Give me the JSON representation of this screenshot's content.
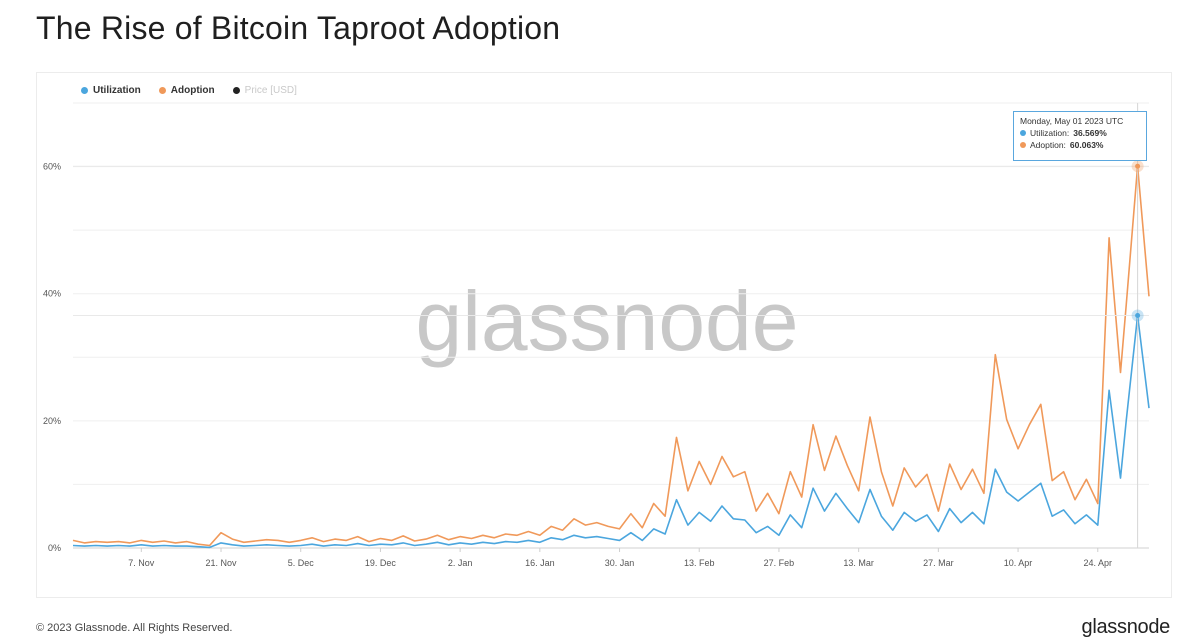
{
  "title": "The Rise of Bitcoin Taproot Adoption",
  "legend": [
    {
      "label": "Utilization",
      "color": "#4ba6de"
    },
    {
      "label": "Adoption",
      "color": "#f0995a"
    },
    {
      "label": "Price [USD]",
      "color": "#222222"
    }
  ],
  "watermark": "glassnode",
  "tooltip": {
    "date": "Monday, May 01 2023 UTC",
    "utilization_label": "Utilization:",
    "utilization_value": "36.569%",
    "adoption_label": "Adoption:",
    "adoption_value": "60.063%"
  },
  "footer": "© 2023 Glassnode. All Rights Reserved.",
  "logo": "glassnode",
  "chart_data": {
    "type": "line",
    "title": "The Rise of Bitcoin Taproot Adoption",
    "xlabel": "",
    "ylabel": "",
    "x_range": [
      "2022-10-26",
      "2023-05-03"
    ],
    "x_ticks": [
      "7. Nov",
      "21. Nov",
      "5. Dec",
      "19. Dec",
      "2. Jan",
      "16. Jan",
      "30. Jan",
      "13. Feb",
      "27. Feb",
      "13. Mar",
      "27. Mar",
      "10. Apr",
      "24. Apr"
    ],
    "y_ticks": [
      "0%",
      "20%",
      "40%",
      "60%"
    ],
    "ylim": [
      0,
      70
    ],
    "grid": true,
    "legend_position": "top-left",
    "series": [
      {
        "name": "Adoption",
        "color": "#f0995a",
        "points": [
          [
            "2022-10-26",
            1.2
          ],
          [
            "2022-10-28",
            0.8
          ],
          [
            "2022-10-30",
            1.0
          ],
          [
            "2022-11-01",
            0.9
          ],
          [
            "2022-11-03",
            1.0
          ],
          [
            "2022-11-05",
            0.8
          ],
          [
            "2022-11-07",
            1.2
          ],
          [
            "2022-11-09",
            0.9
          ],
          [
            "2022-11-11",
            1.1
          ],
          [
            "2022-11-13",
            0.8
          ],
          [
            "2022-11-15",
            1.0
          ],
          [
            "2022-11-17",
            0.6
          ],
          [
            "2022-11-19",
            0.4
          ],
          [
            "2022-11-21",
            2.4
          ],
          [
            "2022-11-23",
            1.4
          ],
          [
            "2022-11-25",
            0.9
          ],
          [
            "2022-11-27",
            1.1
          ],
          [
            "2022-11-29",
            1.3
          ],
          [
            "2022-12-01",
            1.2
          ],
          [
            "2022-12-03",
            0.9
          ],
          [
            "2022-12-05",
            1.2
          ],
          [
            "2022-12-07",
            1.6
          ],
          [
            "2022-12-09",
            1.0
          ],
          [
            "2022-12-11",
            1.4
          ],
          [
            "2022-12-13",
            1.2
          ],
          [
            "2022-12-15",
            1.8
          ],
          [
            "2022-12-17",
            1.0
          ],
          [
            "2022-12-19",
            1.5
          ],
          [
            "2022-12-21",
            1.2
          ],
          [
            "2022-12-23",
            1.9
          ],
          [
            "2022-12-25",
            1.1
          ],
          [
            "2022-12-27",
            1.4
          ],
          [
            "2022-12-29",
            2.0
          ],
          [
            "2022-12-31",
            1.3
          ],
          [
            "2023-01-02",
            1.8
          ],
          [
            "2023-01-04",
            1.5
          ],
          [
            "2023-01-06",
            2.0
          ],
          [
            "2023-01-08",
            1.6
          ],
          [
            "2023-01-10",
            2.2
          ],
          [
            "2023-01-12",
            2.0
          ],
          [
            "2023-01-14",
            2.6
          ],
          [
            "2023-01-16",
            2.0
          ],
          [
            "2023-01-18",
            3.4
          ],
          [
            "2023-01-20",
            2.8
          ],
          [
            "2023-01-22",
            4.6
          ],
          [
            "2023-01-24",
            3.6
          ],
          [
            "2023-01-26",
            4.0
          ],
          [
            "2023-01-28",
            3.4
          ],
          [
            "2023-01-30",
            3.0
          ],
          [
            "2023-02-01",
            5.4
          ],
          [
            "2023-02-03",
            3.2
          ],
          [
            "2023-02-05",
            7.0
          ],
          [
            "2023-02-07",
            5.0
          ],
          [
            "2023-02-09",
            17.4
          ],
          [
            "2023-02-11",
            9.0
          ],
          [
            "2023-02-13",
            13.6
          ],
          [
            "2023-02-15",
            10.0
          ],
          [
            "2023-02-17",
            14.4
          ],
          [
            "2023-02-19",
            11.2
          ],
          [
            "2023-02-21",
            12.0
          ],
          [
            "2023-02-23",
            5.8
          ],
          [
            "2023-02-25",
            8.6
          ],
          [
            "2023-02-27",
            5.4
          ],
          [
            "2023-03-01",
            12.0
          ],
          [
            "2023-03-03",
            8.0
          ],
          [
            "2023-03-05",
            19.4
          ],
          [
            "2023-03-07",
            12.2
          ],
          [
            "2023-03-09",
            17.6
          ],
          [
            "2023-03-11",
            13.0
          ],
          [
            "2023-03-13",
            9.0
          ],
          [
            "2023-03-15",
            20.6
          ],
          [
            "2023-03-17",
            12.0
          ],
          [
            "2023-03-19",
            6.6
          ],
          [
            "2023-03-21",
            12.6
          ],
          [
            "2023-03-23",
            9.6
          ],
          [
            "2023-03-25",
            11.6
          ],
          [
            "2023-03-27",
            5.8
          ],
          [
            "2023-03-29",
            13.2
          ],
          [
            "2023-03-31",
            9.2
          ],
          [
            "2023-04-02",
            12.4
          ],
          [
            "2023-04-04",
            8.6
          ],
          [
            "2023-04-06",
            30.4
          ],
          [
            "2023-04-08",
            20.2
          ],
          [
            "2023-04-10",
            15.6
          ],
          [
            "2023-04-12",
            19.4
          ],
          [
            "2023-04-14",
            22.6
          ],
          [
            "2023-04-16",
            10.6
          ],
          [
            "2023-04-18",
            12.0
          ],
          [
            "2023-04-20",
            7.6
          ],
          [
            "2023-04-22",
            10.8
          ],
          [
            "2023-04-24",
            7.0
          ],
          [
            "2023-04-26",
            48.8
          ],
          [
            "2023-04-28",
            27.6
          ],
          [
            "2023-04-29",
            38.2
          ],
          [
            "2023-05-01",
            60.06
          ],
          [
            "2023-05-03",
            39.6
          ]
        ]
      },
      {
        "name": "Utilization",
        "color": "#4ba6de",
        "points": [
          [
            "2022-10-26",
            0.4
          ],
          [
            "2022-10-28",
            0.3
          ],
          [
            "2022-10-30",
            0.4
          ],
          [
            "2022-11-01",
            0.3
          ],
          [
            "2022-11-03",
            0.4
          ],
          [
            "2022-11-05",
            0.3
          ],
          [
            "2022-11-07",
            0.5
          ],
          [
            "2022-11-09",
            0.3
          ],
          [
            "2022-11-11",
            0.4
          ],
          [
            "2022-11-13",
            0.3
          ],
          [
            "2022-11-15",
            0.3
          ],
          [
            "2022-11-17",
            0.2
          ],
          [
            "2022-11-19",
            0.1
          ],
          [
            "2022-11-21",
            0.8
          ],
          [
            "2022-11-23",
            0.5
          ],
          [
            "2022-11-25",
            0.3
          ],
          [
            "2022-11-27",
            0.4
          ],
          [
            "2022-11-29",
            0.5
          ],
          [
            "2022-12-01",
            0.4
          ],
          [
            "2022-12-03",
            0.3
          ],
          [
            "2022-12-05",
            0.4
          ],
          [
            "2022-12-07",
            0.6
          ],
          [
            "2022-12-09",
            0.3
          ],
          [
            "2022-12-11",
            0.5
          ],
          [
            "2022-12-13",
            0.4
          ],
          [
            "2022-12-15",
            0.7
          ],
          [
            "2022-12-17",
            0.4
          ],
          [
            "2022-12-19",
            0.6
          ],
          [
            "2022-12-21",
            0.5
          ],
          [
            "2022-12-23",
            0.8
          ],
          [
            "2022-12-25",
            0.4
          ],
          [
            "2022-12-27",
            0.6
          ],
          [
            "2022-12-29",
            0.9
          ],
          [
            "2022-12-31",
            0.5
          ],
          [
            "2023-01-02",
            0.8
          ],
          [
            "2023-01-04",
            0.6
          ],
          [
            "2023-01-06",
            0.9
          ],
          [
            "2023-01-08",
            0.7
          ],
          [
            "2023-01-10",
            1.0
          ],
          [
            "2023-01-12",
            0.9
          ],
          [
            "2023-01-14",
            1.2
          ],
          [
            "2023-01-16",
            0.9
          ],
          [
            "2023-01-18",
            1.6
          ],
          [
            "2023-01-20",
            1.3
          ],
          [
            "2023-01-22",
            2.0
          ],
          [
            "2023-01-24",
            1.6
          ],
          [
            "2023-01-26",
            1.8
          ],
          [
            "2023-01-28",
            1.5
          ],
          [
            "2023-01-30",
            1.2
          ],
          [
            "2023-02-01",
            2.4
          ],
          [
            "2023-02-03",
            1.2
          ],
          [
            "2023-02-05",
            3.0
          ],
          [
            "2023-02-07",
            2.2
          ],
          [
            "2023-02-09",
            7.6
          ],
          [
            "2023-02-11",
            3.6
          ],
          [
            "2023-02-13",
            5.6
          ],
          [
            "2023-02-15",
            4.2
          ],
          [
            "2023-02-17",
            6.6
          ],
          [
            "2023-02-19",
            4.6
          ],
          [
            "2023-02-21",
            4.4
          ],
          [
            "2023-02-23",
            2.4
          ],
          [
            "2023-02-25",
            3.4
          ],
          [
            "2023-02-27",
            2.0
          ],
          [
            "2023-03-01",
            5.2
          ],
          [
            "2023-03-03",
            3.2
          ],
          [
            "2023-03-05",
            9.4
          ],
          [
            "2023-03-07",
            5.8
          ],
          [
            "2023-03-09",
            8.6
          ],
          [
            "2023-03-11",
            6.2
          ],
          [
            "2023-03-13",
            4.0
          ],
          [
            "2023-03-15",
            9.2
          ],
          [
            "2023-03-17",
            5.0
          ],
          [
            "2023-03-19",
            2.8
          ],
          [
            "2023-03-21",
            5.6
          ],
          [
            "2023-03-23",
            4.2
          ],
          [
            "2023-03-25",
            5.2
          ],
          [
            "2023-03-27",
            2.6
          ],
          [
            "2023-03-29",
            6.2
          ],
          [
            "2023-03-31",
            4.0
          ],
          [
            "2023-04-02",
            5.6
          ],
          [
            "2023-04-04",
            3.8
          ],
          [
            "2023-04-06",
            12.4
          ],
          [
            "2023-04-08",
            8.8
          ],
          [
            "2023-04-10",
            7.4
          ],
          [
            "2023-04-12",
            8.8
          ],
          [
            "2023-04-14",
            10.2
          ],
          [
            "2023-04-16",
            5.0
          ],
          [
            "2023-04-18",
            6.0
          ],
          [
            "2023-04-20",
            3.8
          ],
          [
            "2023-04-22",
            5.2
          ],
          [
            "2023-04-24",
            3.6
          ],
          [
            "2023-04-26",
            24.8
          ],
          [
            "2023-04-28",
            11.0
          ],
          [
            "2023-04-29",
            20.0
          ],
          [
            "2023-05-01",
            36.57
          ],
          [
            "2023-05-03",
            22.0
          ]
        ]
      }
    ]
  }
}
